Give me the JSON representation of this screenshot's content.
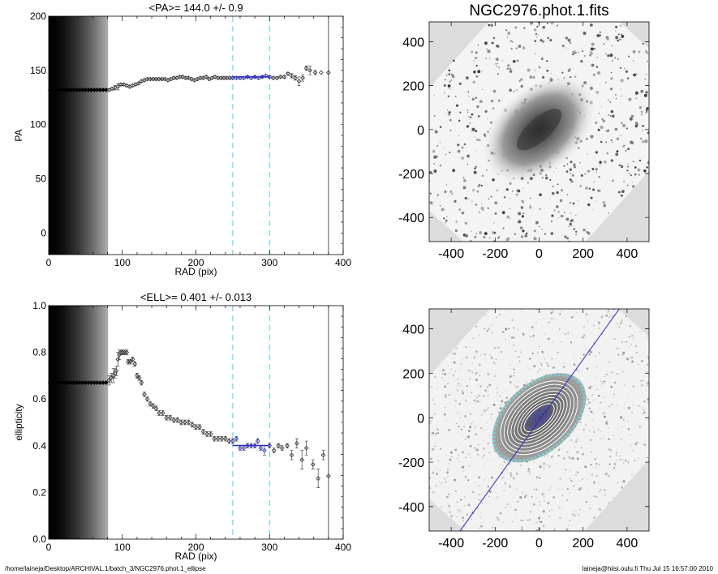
{
  "footer": {
    "path": "/home/laineja/Desktop/ARCHIVAL.1/batch_3/NGC2976.phot.1_ellipse",
    "user_date": "laineja@hiisi.oulu.fi  Thu Jul 15 16:57:00 2010"
  },
  "colors": {
    "fit": "#2a2ac0",
    "range": "#66dde0",
    "points": "#333333",
    "contour": "#ffffff",
    "band_dark": "#000000",
    "band_light": "#aaaaaa"
  },
  "chart_data": [
    {
      "type": "scatter",
      "title": "<PA>= 144.0 +/-   0.9",
      "xlabel": "RAD (pix)",
      "ylabel": "PA",
      "xlim": [
        0,
        400
      ],
      "ylim": [
        -20,
        200
      ],
      "xticks": [
        "0",
        "100",
        "200",
        "300",
        "400"
      ],
      "yticks": [
        "0",
        "50",
        "100",
        "150",
        "200"
      ],
      "ytick_values": [
        0,
        50,
        100,
        150,
        200
      ],
      "xtick_values": [
        0,
        100,
        200,
        300,
        400
      ],
      "shaded_region": [
        0,
        80
      ],
      "fit_range": [
        250,
        300
      ],
      "max_radius": 380,
      "mean": 144.0,
      "mean_err": 0.9,
      "x": [
        2,
        6,
        10,
        14,
        18,
        22,
        26,
        30,
        34,
        38,
        42,
        46,
        50,
        54,
        58,
        62,
        66,
        70,
        74,
        78,
        82,
        86,
        90,
        94,
        98,
        102,
        106,
        110,
        114,
        118,
        122,
        126,
        130,
        134,
        138,
        142,
        146,
        150,
        154,
        158,
        162,
        166,
        170,
        174,
        178,
        182,
        186,
        190,
        194,
        198,
        202,
        206,
        210,
        214,
        218,
        222,
        226,
        230,
        234,
        238,
        242,
        246,
        250,
        255,
        260,
        265,
        270,
        275,
        280,
        285,
        290,
        295,
        300,
        305,
        310,
        315,
        320,
        325,
        330,
        335,
        340,
        345,
        350,
        355,
        362,
        370,
        380
      ],
      "y": [
        132,
        132,
        132,
        132,
        132,
        132,
        132,
        132,
        132,
        132,
        132,
        132,
        132,
        132,
        132,
        132,
        132,
        132,
        132,
        132,
        132,
        133,
        134,
        135,
        137,
        137,
        136,
        135,
        136,
        137,
        138,
        140,
        141,
        142,
        142,
        142,
        142,
        142,
        142,
        142,
        141,
        142,
        143,
        143,
        144,
        144,
        143,
        143,
        142,
        141,
        142,
        143,
        143,
        144,
        142,
        143,
        144,
        143,
        143,
        143,
        143,
        143,
        143,
        143,
        143,
        143,
        144,
        143,
        144,
        143,
        144,
        145,
        144,
        143,
        143,
        144,
        144,
        147,
        145,
        143,
        140,
        143,
        152,
        150,
        148,
        148,
        148
      ],
      "err": [
        0,
        0,
        0,
        0,
        0,
        0,
        0,
        0,
        0,
        0,
        0,
        0,
        0,
        0,
        0,
        0,
        0,
        0,
        0,
        0,
        1,
        1,
        2,
        3,
        1,
        1,
        1,
        1,
        1,
        1,
        1,
        1,
        1,
        1,
        1,
        1,
        1,
        1,
        1,
        1,
        1,
        1,
        1,
        1,
        1,
        1,
        1,
        1,
        1,
        1,
        1,
        1,
        1,
        1,
        1,
        1,
        1,
        1,
        1,
        1,
        1,
        1,
        1,
        1,
        1,
        1,
        1,
        1,
        1,
        1,
        1,
        1,
        1,
        1,
        1,
        1,
        1,
        1,
        2,
        2,
        4,
        3,
        2,
        4,
        2,
        0,
        0
      ]
    },
    {
      "type": "scatter",
      "title": "<ELL>= 0.401 +/-  0.013",
      "xlabel": "RAD (pix)",
      "ylabel": "ellipticity",
      "xlim": [
        0,
        400
      ],
      "ylim": [
        0,
        1
      ],
      "xticks": [
        "0",
        "100",
        "200",
        "300",
        "400"
      ],
      "yticks": [
        "0.0",
        "0.2",
        "0.4",
        "0.6",
        "0.8",
        "1.0"
      ],
      "ytick_values": [
        0,
        0.2,
        0.4,
        0.6,
        0.8,
        1.0
      ],
      "xtick_values": [
        0,
        100,
        200,
        300,
        400
      ],
      "shaded_region": [
        0,
        80
      ],
      "fit_range": [
        250,
        300
      ],
      "max_radius": 380,
      "mean": 0.401,
      "mean_err": 0.013,
      "x": [
        2,
        6,
        10,
        14,
        18,
        22,
        26,
        30,
        34,
        38,
        42,
        46,
        50,
        54,
        58,
        62,
        66,
        70,
        74,
        78,
        82,
        85,
        88,
        90,
        92,
        94,
        96,
        98,
        100,
        103,
        106,
        108,
        111,
        114,
        117,
        120,
        123,
        126,
        130,
        134,
        138,
        142,
        146,
        150,
        155,
        160,
        165,
        170,
        175,
        180,
        185,
        190,
        195,
        200,
        205,
        210,
        215,
        220,
        225,
        230,
        235,
        240,
        245,
        250,
        255,
        260,
        265,
        270,
        275,
        280,
        284,
        288,
        293,
        300,
        306,
        312,
        317,
        324,
        330,
        337,
        344,
        350,
        359,
        366,
        373,
        380
      ],
      "y": [
        0.67,
        0.67,
        0.67,
        0.67,
        0.67,
        0.67,
        0.67,
        0.67,
        0.67,
        0.67,
        0.67,
        0.67,
        0.67,
        0.67,
        0.67,
        0.67,
        0.67,
        0.67,
        0.67,
        0.67,
        0.68,
        0.69,
        0.7,
        0.71,
        0.72,
        0.77,
        0.79,
        0.8,
        0.8,
        0.8,
        0.8,
        0.76,
        0.76,
        0.77,
        0.75,
        0.7,
        0.69,
        0.67,
        0.62,
        0.6,
        0.58,
        0.57,
        0.56,
        0.54,
        0.54,
        0.52,
        0.52,
        0.51,
        0.51,
        0.5,
        0.5,
        0.5,
        0.49,
        0.48,
        0.48,
        0.46,
        0.45,
        0.45,
        0.43,
        0.43,
        0.43,
        0.43,
        0.42,
        0.42,
        0.43,
        0.39,
        0.39,
        0.4,
        0.4,
        0.4,
        0.42,
        0.39,
        0.38,
        0.4,
        0.38,
        0.4,
        0.39,
        0.4,
        0.36,
        0.41,
        0.34,
        0.39,
        0.32,
        0.26,
        0.36,
        0.27
      ],
      "err": [
        0,
        0,
        0,
        0,
        0,
        0,
        0,
        0,
        0,
        0,
        0,
        0,
        0,
        0,
        0,
        0,
        0,
        0,
        0,
        0,
        0.02,
        0.02,
        0.03,
        0.02,
        0.02,
        0.03,
        0.02,
        0.01,
        0.01,
        0.01,
        0.01,
        0.01,
        0.01,
        0.01,
        0.01,
        0.01,
        0.01,
        0.01,
        0.01,
        0.01,
        0.01,
        0.01,
        0.01,
        0.01,
        0.01,
        0.01,
        0.01,
        0.01,
        0.01,
        0.01,
        0.01,
        0.01,
        0.01,
        0.01,
        0.01,
        0.01,
        0.01,
        0.01,
        0.01,
        0.01,
        0.01,
        0.01,
        0.01,
        0.01,
        0.01,
        0.01,
        0.01,
        0.01,
        0.01,
        0.01,
        0.01,
        0.01,
        0.02,
        0.01,
        0.01,
        0.01,
        0.01,
        0.01,
        0.02,
        0.02,
        0.04,
        0.03,
        0.02,
        0.04,
        0.02,
        0
      ]
    },
    {
      "type": "heatmap",
      "title": "NGC2976.phot.1.fits",
      "xlim": [
        -500,
        500
      ],
      "ylim": [
        -510,
        490
      ],
      "xticks": [
        "-400",
        "-200",
        "0",
        "200",
        "400"
      ],
      "yticks": [
        "-400",
        "-200",
        "0",
        "200",
        "400"
      ],
      "tick_values": [
        -400,
        -200,
        0,
        200,
        400
      ]
    },
    {
      "type": "heatmap",
      "title": "",
      "xlim": [
        -500,
        500
      ],
      "ylim": [
        -510,
        490
      ],
      "xticks": [
        "-400",
        "-200",
        "0",
        "200",
        "400"
      ],
      "yticks": [
        "-400",
        "-200",
        "0",
        "200",
        "400"
      ],
      "tick_values": [
        -400,
        -200,
        0,
        200,
        400
      ],
      "pa_line": [
        [
          -360,
          -510
        ],
        [
          365,
          490
        ]
      ]
    }
  ]
}
